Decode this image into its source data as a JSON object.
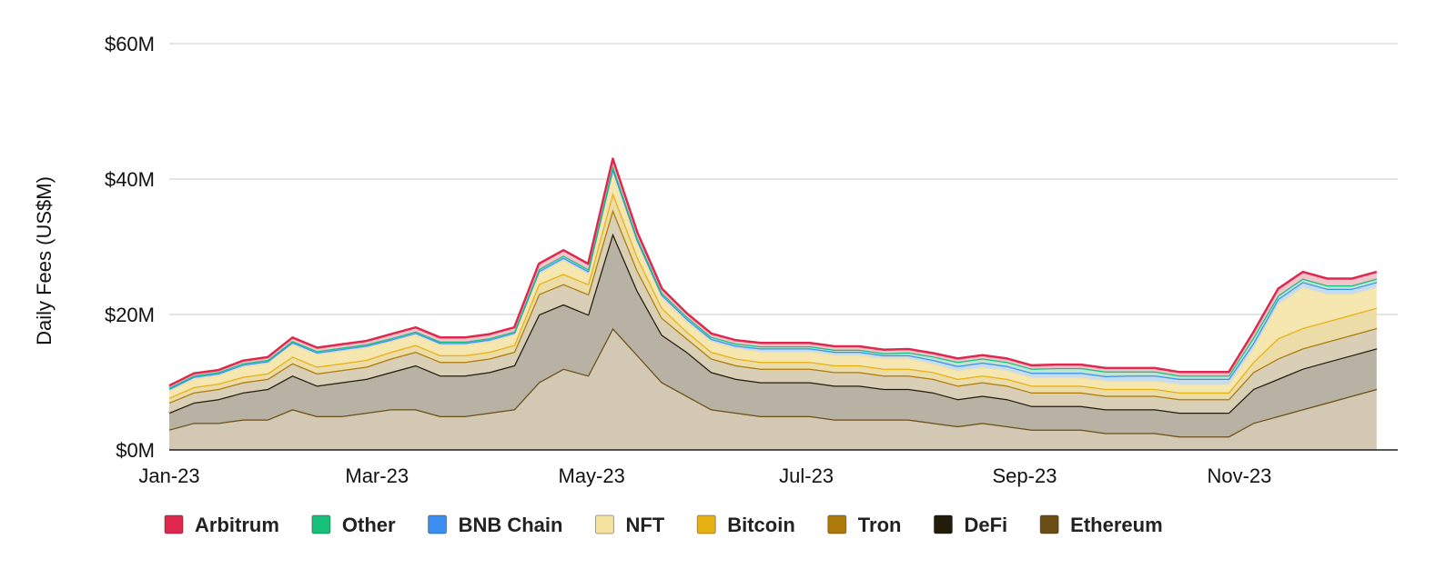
{
  "chart_data": {
    "type": "area",
    "stacked": true,
    "title": "",
    "xlabel": "",
    "ylabel": "Daily Fees (US$M)",
    "ylim": [
      0,
      60
    ],
    "yticks": [
      {
        "value": 0,
        "label": "$0M"
      },
      {
        "value": 20,
        "label": "$20M"
      },
      {
        "value": 40,
        "label": "$40M"
      },
      {
        "value": 60,
        "label": "$60M"
      }
    ],
    "xticks": [
      "Jan-23",
      "Mar-23",
      "May-23",
      "Jul-23",
      "Sep-23",
      "Nov-23"
    ],
    "grid": "horizontal",
    "legend_position": "bottom",
    "x_unit": "week",
    "x": [
      "2023-01-01",
      "2023-01-08",
      "2023-01-15",
      "2023-01-22",
      "2023-01-29",
      "2023-02-05",
      "2023-02-12",
      "2023-02-19",
      "2023-02-26",
      "2023-03-05",
      "2023-03-12",
      "2023-03-19",
      "2023-03-26",
      "2023-04-02",
      "2023-04-09",
      "2023-04-16",
      "2023-04-23",
      "2023-04-30",
      "2023-05-07",
      "2023-05-14",
      "2023-05-21",
      "2023-05-28",
      "2023-06-04",
      "2023-06-11",
      "2023-06-18",
      "2023-06-25",
      "2023-07-02",
      "2023-07-09",
      "2023-07-16",
      "2023-07-23",
      "2023-07-30",
      "2023-08-06",
      "2023-08-13",
      "2023-08-20",
      "2023-08-27",
      "2023-09-03",
      "2023-09-10",
      "2023-09-17",
      "2023-09-24",
      "2023-10-01",
      "2023-10-08",
      "2023-10-15",
      "2023-10-22",
      "2023-10-29",
      "2023-11-05",
      "2023-11-12",
      "2023-11-19",
      "2023-11-26",
      "2023-12-03",
      "2023-12-10"
    ],
    "series": [
      {
        "name": "Ethereum",
        "color": "#6b4e16",
        "fill": "#d2c8b4",
        "values": [
          3,
          4,
          4,
          4.5,
          4.5,
          6,
          5,
          5,
          5.5,
          6,
          6,
          5,
          5,
          5.5,
          6,
          10,
          12,
          11,
          18,
          14,
          10,
          8,
          6,
          5.5,
          5,
          5,
          5,
          4.5,
          4.5,
          4.5,
          4.5,
          4,
          3.5,
          4,
          3.5,
          3,
          3,
          3,
          2.5,
          2.5,
          2.5,
          2,
          2,
          2,
          4,
          5,
          6,
          7,
          8,
          9
        ]
      },
      {
        "name": "DeFi",
        "color": "#241c0a",
        "fill": "#b8b2a4",
        "values": [
          2.5,
          3,
          3.5,
          4,
          4.5,
          5,
          4.5,
          5,
          5,
          5.5,
          6.5,
          6,
          6,
          6,
          6.5,
          10,
          9.5,
          9,
          14,
          9.5,
          7,
          6.5,
          5.5,
          5,
          5,
          5,
          5,
          5,
          5,
          4.5,
          4.5,
          4.5,
          4,
          4,
          4,
          3.5,
          3.5,
          3.5,
          3.5,
          3.5,
          3.5,
          3.5,
          3.5,
          3.5,
          5,
          5.5,
          6,
          6,
          6,
          6
        ]
      },
      {
        "name": "Tron",
        "color": "#ad7a0b",
        "fill": "#d9cfb6",
        "values": [
          1.5,
          1.5,
          1.5,
          1.5,
          1.5,
          1.8,
          1.8,
          1.8,
          1.8,
          2,
          2,
          2,
          2,
          2,
          2,
          3,
          3,
          3,
          3.5,
          3,
          2.5,
          2,
          2,
          2,
          2,
          2,
          2,
          2,
          2,
          2,
          2,
          2,
          2,
          2,
          2,
          2,
          2,
          2,
          2,
          2,
          2,
          2,
          2,
          2,
          2.5,
          3,
          3,
          3,
          3,
          3
        ]
      },
      {
        "name": "Bitcoin",
        "color": "#e8b112",
        "fill": "#ecdca8",
        "values": [
          0.7,
          0.8,
          0.8,
          0.8,
          0.8,
          1,
          1,
          1,
          1,
          1,
          1,
          1,
          1,
          1,
          1,
          1.5,
          1.5,
          1.5,
          2.5,
          2,
          1.5,
          1,
          1,
          1,
          1,
          1,
          1,
          1,
          1,
          1,
          1,
          1,
          1,
          1,
          1,
          1,
          1,
          1,
          1,
          1,
          1,
          1,
          1,
          1,
          1.5,
          3,
          3,
          3,
          3,
          3
        ]
      },
      {
        "name": "NFT",
        "color": "#f6e3a0",
        "fill": "#f6e6b0",
        "values": [
          1,
          1.2,
          1.2,
          1.5,
          1.5,
          1.8,
          1.8,
          1.8,
          1.8,
          1.5,
          1.5,
          1.5,
          1.5,
          1.5,
          1.5,
          1.5,
          2,
          1.5,
          3,
          2,
          1.5,
          1.5,
          1.5,
          1.5,
          1.5,
          1.5,
          1.5,
          1.5,
          1.5,
          1.5,
          1.5,
          1.2,
          1.2,
          1.2,
          1.2,
          1.2,
          1.2,
          1.2,
          1.2,
          1.2,
          1.2,
          1.2,
          1.2,
          1.2,
          2,
          5,
          6,
          4,
          3,
          3
        ]
      },
      {
        "name": "BNB Chain",
        "color": "#3b8ff0",
        "fill": "#c8dcef",
        "values": [
          0.3,
          0.3,
          0.3,
          0.3,
          0.3,
          0.3,
          0.3,
          0.3,
          0.3,
          0.3,
          0.3,
          0.3,
          0.3,
          0.3,
          0.3,
          0.4,
          0.4,
          0.4,
          0.6,
          0.5,
          0.4,
          0.4,
          0.4,
          0.4,
          0.5,
          0.5,
          0.5,
          0.5,
          0.5,
          0.5,
          0.5,
          0.6,
          0.7,
          0.7,
          0.7,
          0.7,
          0.7,
          0.7,
          0.7,
          0.8,
          0.8,
          0.8,
          0.8,
          0.8,
          0.8,
          0.8,
          0.8,
          0.8,
          0.8,
          0.8
        ]
      },
      {
        "name": "Other",
        "color": "#16c07a",
        "fill": "#bfe6d4",
        "values": [
          0.2,
          0.2,
          0.2,
          0.2,
          0.2,
          0.2,
          0.2,
          0.2,
          0.2,
          0.2,
          0.2,
          0.2,
          0.2,
          0.2,
          0.2,
          0.3,
          0.3,
          0.3,
          0.4,
          0.3,
          0.3,
          0.3,
          0.3,
          0.3,
          0.3,
          0.3,
          0.3,
          0.3,
          0.3,
          0.3,
          0.4,
          0.5,
          0.6,
          0.6,
          0.6,
          0.6,
          0.7,
          0.7,
          0.7,
          0.6,
          0.6,
          0.5,
          0.5,
          0.5,
          0.8,
          0.5,
          0.5,
          0.5,
          0.5,
          0.5
        ]
      },
      {
        "name": "Arbitrum",
        "color": "#e0284e",
        "fill": "#f2c4cc",
        "values": [
          0.3,
          0.3,
          0.3,
          0.4,
          0.4,
          0.5,
          0.5,
          0.5,
          0.5,
          0.6,
          0.6,
          0.6,
          0.6,
          0.6,
          0.6,
          0.8,
          0.8,
          0.8,
          1,
          0.8,
          0.6,
          0.5,
          0.5,
          0.5,
          0.5,
          0.5,
          0.5,
          0.5,
          0.5,
          0.5,
          0.5,
          0.5,
          0.5,
          0.5,
          0.5,
          0.5,
          0.5,
          0.5,
          0.5,
          0.5,
          0.5,
          0.5,
          0.5,
          0.5,
          0.8,
          1,
          1,
          1,
          1,
          1
        ]
      }
    ],
    "legend_order": [
      "Arbitrum",
      "Other",
      "BNB Chain",
      "NFT",
      "Bitcoin",
      "Tron",
      "DeFi",
      "Ethereum"
    ]
  }
}
